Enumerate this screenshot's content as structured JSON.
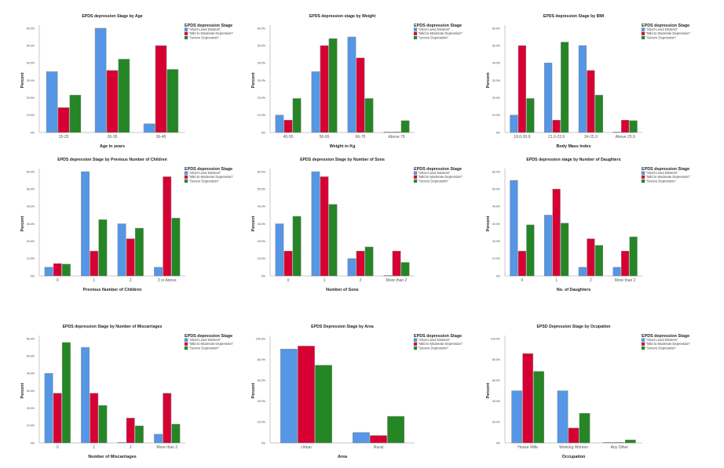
{
  "colors": {
    "short": "#5596e6",
    "mild": "#d70032",
    "severe": "#248624",
    "axis": "#c8c8c8",
    "bar_stroke": "#888888"
  },
  "legend": {
    "title": "EPDS depression Stage",
    "items": [
      "\"Short-Lived Distress\"",
      "\"Mild to Moderate Depression\"",
      "\"Severe Depression\""
    ]
  },
  "chart_data": [
    {
      "type": "bar",
      "title": "EPDS depression Stage by Age",
      "xlabel": "Age in years",
      "ylabel": "Percent",
      "ylim": [
        0,
        60
      ],
      "yticks": [
        "0%",
        "10.0%",
        "20.0%",
        "30.0%",
        "40.0%",
        "50.0%",
        "60.0%"
      ],
      "categories": [
        "15-25",
        "26-35",
        "36-45"
      ],
      "series": [
        {
          "name": "\"Short-Lived Distress\"",
          "values": [
            35,
            60,
            5
          ]
        },
        {
          "name": "\"Mild to Moderate Depression\"",
          "values": [
            14.3,
            35.7,
            50
          ]
        },
        {
          "name": "\"Severe Depression\"",
          "values": [
            21.5,
            42.2,
            36.3
          ]
        }
      ],
      "legend": "top-right",
      "grid": false
    },
    {
      "type": "bar",
      "title": "EPDS depression stage by Weight",
      "xlabel": "Weight in Kg",
      "ylabel": "Percent",
      "ylim": [
        0,
        60
      ],
      "yticks": [
        "0%",
        "10.0%",
        "20.0%",
        "30.0%",
        "40.0%",
        "50.0%",
        "60.0%"
      ],
      "categories": [
        "45-55",
        "56-65",
        "66-75",
        "Above 75"
      ],
      "series": [
        {
          "name": "\"Short-Lived Distress\"",
          "values": [
            10,
            35,
            55,
            0
          ]
        },
        {
          "name": "\"Mild to Moderate Depression\"",
          "values": [
            7.1,
            50,
            42.9,
            0
          ]
        },
        {
          "name": "\"Severe Depression\"",
          "values": [
            19.6,
            54,
            19.6,
            6.8
          ]
        }
      ],
      "legend": "top-right",
      "grid": false
    },
    {
      "type": "bar",
      "title": "EPDS depression Stage by BMI",
      "xlabel": "Body Mass Index",
      "ylabel": "Percent",
      "ylim": [
        0,
        60
      ],
      "yticks": [
        "0%",
        "10.0%",
        "20.0%",
        "30.0%",
        "40.0%",
        "50.0%",
        "60.0%"
      ],
      "categories": [
        "18.0-20.9",
        "21.0-23.9",
        "24-25.9",
        "Above 25.9"
      ],
      "series": [
        {
          "name": "\"Short-Lived Distress\"",
          "values": [
            10,
            40,
            50,
            0
          ]
        },
        {
          "name": "\"Mild to Moderate Depression\"",
          "values": [
            50,
            7.1,
            35.7,
            7.1
          ]
        },
        {
          "name": "\"Severe Depression\"",
          "values": [
            19.6,
            52,
            21.5,
            6.8
          ]
        }
      ],
      "legend": "top-right",
      "grid": false
    },
    {
      "type": "bar",
      "title": "EPDS depression Stage by Previous Number of Children",
      "xlabel": "Previous Number of Children",
      "ylabel": "Percent",
      "ylim": [
        0,
        60
      ],
      "yticks": [
        "0%",
        "10.0%",
        "20.0%",
        "30.0%",
        "40.0%",
        "50.0%",
        "60.0%"
      ],
      "categories": [
        "0",
        "1",
        "2",
        "3 or Above"
      ],
      "series": [
        {
          "name": "\"Short-Lived Distress\"",
          "values": [
            5,
            60,
            30,
            5
          ]
        },
        {
          "name": "\"Mild to Moderate Depression\"",
          "values": [
            7.1,
            14.3,
            21.4,
            57.1
          ]
        },
        {
          "name": "\"Severe Depression\"",
          "values": [
            6.8,
            32.4,
            27.5,
            33.3
          ]
        }
      ],
      "legend": "top-right",
      "grid": false
    },
    {
      "type": "bar",
      "title": "EPDS depression Stage by Number of Sons",
      "xlabel": "Number of Sons",
      "ylabel": "Percent",
      "ylim": [
        0,
        60
      ],
      "yticks": [
        "0%",
        "10.0%",
        "20.0%",
        "30.0%",
        "40.0%",
        "50.0%",
        "60.0%"
      ],
      "categories": [
        "0",
        "1",
        "2",
        "More than 2"
      ],
      "series": [
        {
          "name": "\"Short-Lived Distress\"",
          "values": [
            30,
            60,
            10,
            0
          ]
        },
        {
          "name": "\"Mild to Moderate Depression\"",
          "values": [
            14.3,
            57.1,
            14.3,
            14.3
          ]
        },
        {
          "name": "\"Severe Depression\"",
          "values": [
            34.3,
            41.2,
            16.7,
            7.8
          ]
        }
      ],
      "legend": "top-right",
      "grid": false
    },
    {
      "type": "bar",
      "title": "EPDS depression stage by Number of Daughters",
      "xlabel": "No. of Daughters",
      "ylabel": "Percent",
      "ylim": [
        0,
        60
      ],
      "yticks": [
        "0%",
        "10.0%",
        "20.0%",
        "30.0%",
        "40.0%",
        "50.0%",
        "60.0%"
      ],
      "categories": [
        "0",
        "1",
        "2",
        "More than 2"
      ],
      "series": [
        {
          "name": "\"Short-Lived Distress\"",
          "values": [
            55,
            35,
            5,
            5
          ]
        },
        {
          "name": "\"Mild to Moderate Depression\"",
          "values": [
            14.3,
            50,
            21.4,
            14.3
          ]
        },
        {
          "name": "\"Severe Depression\"",
          "values": [
            29.4,
            30.4,
            17.6,
            22.5
          ]
        }
      ],
      "legend": "top-right",
      "grid": false
    },
    {
      "type": "bar",
      "title": "EPDS depression Stage by Number of Miscarriages",
      "xlabel": "Number of Miscarriages",
      "ylabel": "Percent",
      "ylim": [
        0,
        60
      ],
      "yticks": [
        "0%",
        "10.0%",
        "20.0%",
        "30.0%",
        "40.0%",
        "50.0%",
        "60.0%"
      ],
      "categories": [
        "0",
        "1",
        "2",
        "More than 2"
      ],
      "series": [
        {
          "name": "\"Short-Lived Distress\"",
          "values": [
            40,
            55,
            0,
            5
          ]
        },
        {
          "name": "\"Mild to Moderate Depression\"",
          "values": [
            28.6,
            28.6,
            14.3,
            28.6
          ]
        },
        {
          "name": "\"Severe Depression\"",
          "values": [
            57.8,
            21.6,
            9.8,
            10.8
          ]
        }
      ],
      "legend": "top-right",
      "grid": false
    },
    {
      "type": "bar",
      "title": "EPDS Depression Stage by Area",
      "xlabel": "Area",
      "ylabel": "Percent",
      "ylim": [
        0,
        100
      ],
      "yticks": [
        "0%",
        "20.0%",
        "40.0%",
        "60.0%",
        "80.0%",
        "100.0%"
      ],
      "categories": [
        "Urban",
        "Rural"
      ],
      "series": [
        {
          "name": "\"Short-Lived Distress\"",
          "values": [
            90,
            10
          ]
        },
        {
          "name": "\"Mild to Moderate Depression\"",
          "values": [
            92.9,
            7.1
          ]
        },
        {
          "name": "\"Severe Depression\"",
          "values": [
            74.5,
            25.5
          ]
        }
      ],
      "legend": "top-right",
      "grid": false
    },
    {
      "type": "bar",
      "title": "EPSD Depression Stage by Ocupation",
      "xlabel": "Occupation",
      "ylabel": "Percent",
      "ylim": [
        0,
        100
      ],
      "yticks": [
        "0%",
        "20.0%",
        "40.0%",
        "60.0%",
        "80.0%",
        "100.0%"
      ],
      "categories": [
        "House Wife",
        "Working Women",
        "Any Other"
      ],
      "series": [
        {
          "name": "\"Short-Lived Distress\"",
          "values": [
            50,
            50,
            0
          ]
        },
        {
          "name": "\"Mild to Moderate Depression\"",
          "values": [
            85.7,
            14.3,
            0
          ]
        },
        {
          "name": "\"Severe Depression\"",
          "values": [
            68.6,
            28.4,
            2.9
          ]
        }
      ],
      "legend": "top-right",
      "grid": false
    }
  ]
}
